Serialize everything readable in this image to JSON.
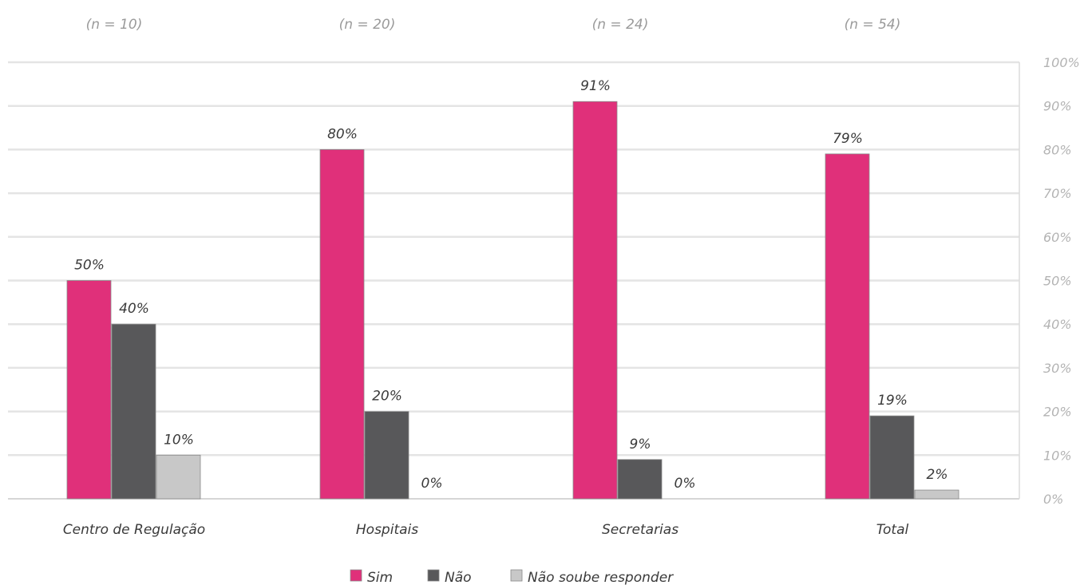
{
  "chart_data": {
    "type": "bar",
    "categories": [
      "Centro de Regulação",
      "Hospitais",
      "Secretarias",
      "Total"
    ],
    "sample_sizes": [
      "(n = 10)",
      "(n = 20)",
      "(n = 24)",
      "(n = 54)"
    ],
    "series": [
      {
        "name": "Sim",
        "color": "#e0307a",
        "values": [
          50,
          80,
          91,
          79
        ],
        "labels": [
          "50%",
          "80%",
          "91%",
          "79%"
        ]
      },
      {
        "name": "Não",
        "color": "#58585a",
        "values": [
          40,
          20,
          9,
          19
        ],
        "labels": [
          "40%",
          "20%",
          "9%",
          "19%"
        ]
      },
      {
        "name": "Não soube responder",
        "color": "#c8c8c8",
        "values": [
          10,
          0,
          0,
          2
        ],
        "labels": [
          "10%",
          "0%",
          "0%",
          "2%"
        ]
      }
    ],
    "ylim": [
      0,
      100
    ],
    "y_ticks": [
      "0%",
      "10%",
      "20%",
      "30%",
      "40%",
      "50%",
      "60%",
      "70%",
      "80%",
      "90%",
      "100%"
    ],
    "y_axis_side": "right",
    "grid": true,
    "legend_position": "bottom"
  }
}
